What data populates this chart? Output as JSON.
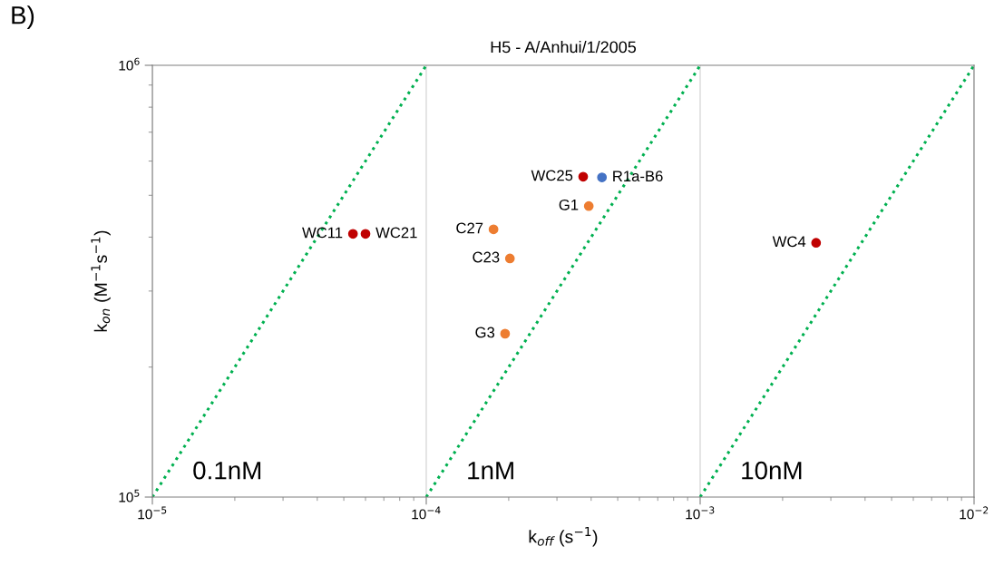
{
  "chart_data": {
    "type": "scatter",
    "title": "H5 - A/Anhui/1/2005",
    "xlabel": "k$_{off}$ (s$^{−1}$)",
    "ylabel": "k$_{on}$ (M$^{−1}$s$^{−1}$)",
    "annotations": [
      "B)"
    ],
    "log": "xy",
    "grid": "x",
    "marker": "circle",
    "legend": false,
    "xlim": [
      1e-05,
      0.01
    ],
    "ylim": [
      100000,
      1000000
    ],
    "xticks": [
      {
        "value": 1e-05,
        "label": "10$^{−5}$"
      },
      {
        "value": 0.0001,
        "label": "10$^{−4}$"
      },
      {
        "value": 0.001,
        "label": "10$^{−3}$"
      },
      {
        "value": 0.01,
        "label": "10$^{−2}$"
      }
    ],
    "yticks": [
      {
        "value": 100000,
        "label": "10$^{5}$"
      },
      {
        "value": 1000000,
        "label": "10$^{6}$"
      }
    ],
    "series": [
      {
        "type": "line",
        "name": "0.1nM",
        "color": "#00b050",
        "line_style": "dotted",
        "marker": "none",
        "x": [
          1e-05,
          0.0001
        ],
        "values": [
          100000,
          1000000
        ]
      },
      {
        "type": "line",
        "name": "1nM",
        "color": "#00b050",
        "line_style": "dotted",
        "marker": "none",
        "x": [
          0.0001,
          0.001
        ],
        "values": [
          100000,
          1000000
        ]
      },
      {
        "type": "line",
        "name": "10nM",
        "color": "#00b050",
        "line_style": "dotted",
        "marker": "none",
        "x": [
          0.001,
          0.01
        ],
        "values": [
          100000,
          1000000
        ]
      },
      {
        "name": "WC11",
        "color": "#c00000",
        "x": [
          5.4e-05
        ],
        "values": [
          407000
        ]
      },
      {
        "name": "WC21",
        "color": "#c00000",
        "x": [
          6e-05
        ],
        "values": [
          407000
        ]
      },
      {
        "name": "WC25",
        "color": "#c00000",
        "x": [
          0.000374
        ],
        "values": [
          552000
        ]
      },
      {
        "name": "R1a-B6",
        "color": "#4472c4",
        "x": [
          0.000438
        ],
        "values": [
          550000
        ]
      },
      {
        "name": "G1",
        "color": "#ed7d31",
        "x": [
          0.000392
        ],
        "values": [
          472000
        ]
      },
      {
        "name": "C27",
        "color": "#ed7d31",
        "x": [
          0.000176
        ],
        "values": [
          417000
        ]
      },
      {
        "name": "C23",
        "color": "#ed7d31",
        "x": [
          0.000202
        ],
        "values": [
          357000
        ]
      },
      {
        "name": "G3",
        "color": "#ed7d31",
        "x": [
          0.000194
        ],
        "values": [
          239000
        ]
      },
      {
        "name": "WC4",
        "color": "#c00000",
        "x": [
          0.00265
        ],
        "values": [
          388000
        ]
      }
    ]
  }
}
